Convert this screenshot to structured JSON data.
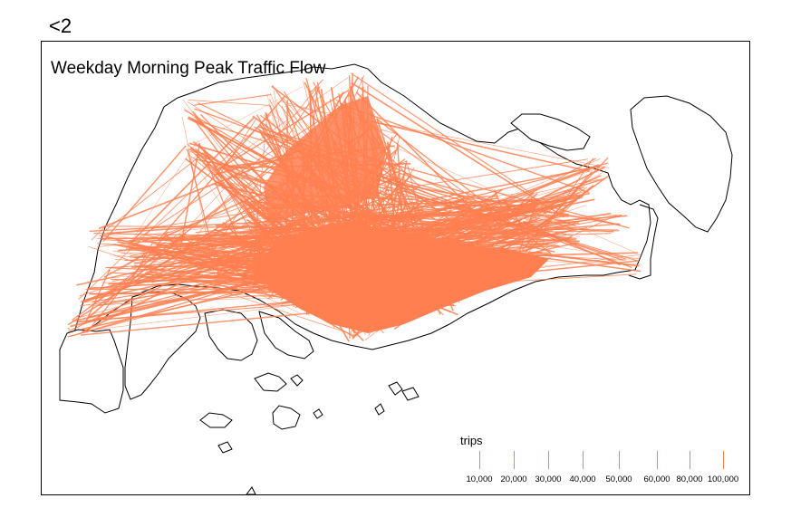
{
  "panel_label": "<2",
  "map": {
    "title": "Weekday Morning Peak Traffic Flow",
    "flow_color": "#FF7F50",
    "boundary_color": "#000000"
  },
  "legend": {
    "title": "trips",
    "items": [
      "10,000",
      "20,000",
      "30,000",
      "40,000",
      "50,000",
      "60,000",
      "80,000",
      "100,000"
    ]
  }
}
